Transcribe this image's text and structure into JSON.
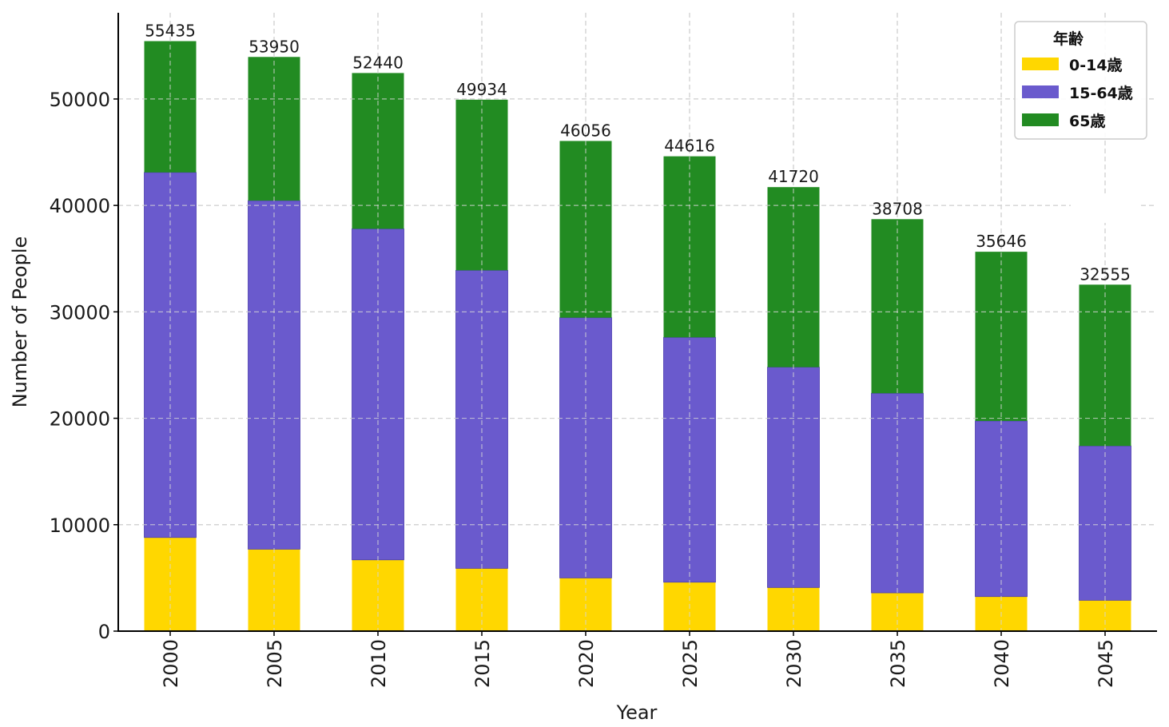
{
  "chart_data": {
    "type": "bar",
    "stacked": true,
    "title": "",
    "xlabel": "Year",
    "ylabel": "Number of People",
    "categories": [
      "2000",
      "2005",
      "2010",
      "2015",
      "2020",
      "2025",
      "2030",
      "2035",
      "2040",
      "2045"
    ],
    "series": [
      {
        "name": "0-14歳",
        "color": "#FFD700",
        "values": [
          8800,
          7700,
          6700,
          5900,
          5000,
          4600,
          4100,
          3600,
          3250,
          2900
        ]
      },
      {
        "name": "15-64歳",
        "color": "#6A5ACD",
        "values": [
          34300,
          32750,
          31100,
          28000,
          24450,
          23000,
          20700,
          18750,
          16500,
          14500
        ]
      },
      {
        "name": "65歳",
        "color": "#228B22",
        "values": [
          12335,
          13500,
          14640,
          16034,
          16606,
          17016,
          16920,
          16358,
          15896,
          15155
        ]
      }
    ],
    "totals": [
      "55435",
      "53950",
      "52440",
      "49934",
      "46056",
      "44616",
      "41720",
      "38708",
      "35646",
      "32555"
    ],
    "totals_numeric": [
      55435,
      53950,
      52440,
      49934,
      46056,
      44616,
      41720,
      38708,
      35646,
      32555
    ],
    "ylim": [
      0,
      58100
    ],
    "yticks": [
      0,
      10000,
      20000,
      30000,
      40000,
      50000
    ],
    "ytick_labels": [
      "0",
      "10000",
      "20000",
      "30000",
      "40000",
      "50000"
    ],
    "grid": true,
    "legend": {
      "title": "年齢",
      "placement": "top-right"
    },
    "xtick_rotation": "vertical"
  }
}
